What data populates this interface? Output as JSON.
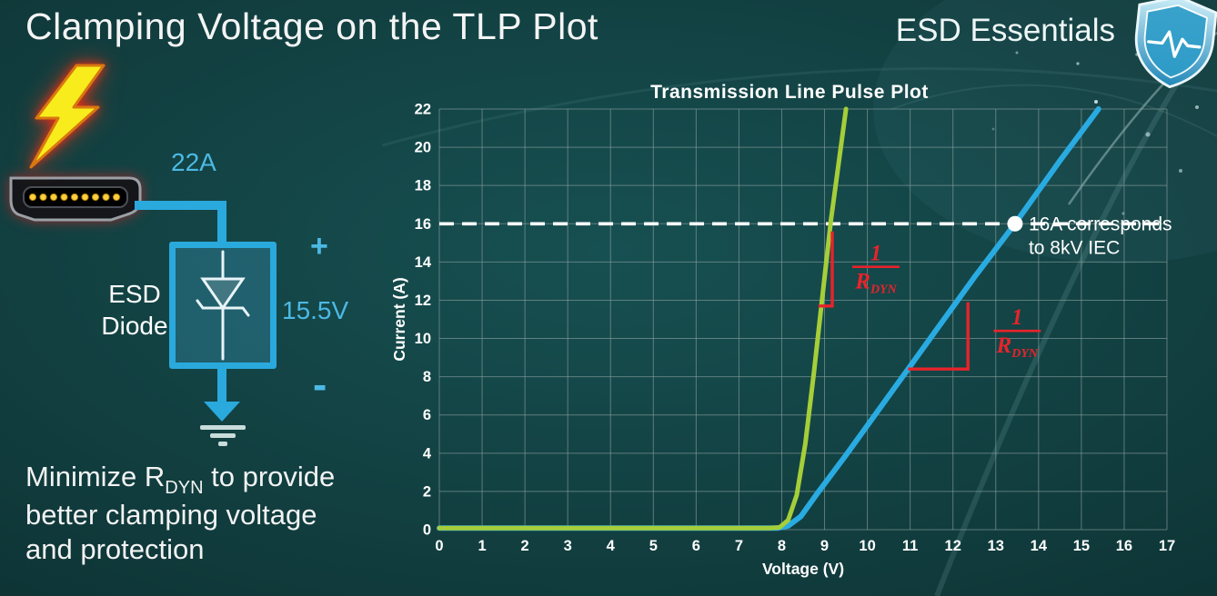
{
  "slide": {
    "title": "Clamping Voltage on the TLP Plot",
    "brand": "ESD Essentials"
  },
  "diagram": {
    "surge_current": "22A",
    "plus": "+",
    "clamp_voltage": "15.5V",
    "minus": "-",
    "component_line1": "ESD",
    "component_line2": "Diode"
  },
  "caption": {
    "line1_pre": "Minimize R",
    "line1_sub": "DYN",
    "line1_post": " to provide",
    "line2": "better clamping voltage",
    "line3": "and protection"
  },
  "chart_data": {
    "type": "line",
    "title": "Transmission Line Pulse Plot",
    "xlabel": "Voltage (V)",
    "ylabel": "Current (A)",
    "xlim": [
      0,
      17
    ],
    "ylim": [
      0,
      22
    ],
    "x_ticks": [
      0,
      1,
      2,
      3,
      4,
      5,
      6,
      7,
      8,
      9,
      10,
      11,
      12,
      13,
      14,
      15,
      16,
      17
    ],
    "y_ticks": [
      0,
      2,
      4,
      6,
      8,
      10,
      12,
      14,
      16,
      18,
      20,
      22
    ],
    "grid": true,
    "legend": "none",
    "colors": {
      "green": "#a6ce39",
      "blue": "#29abe2",
      "red": "#e8232b",
      "grid": "#8fa3a3",
      "white": "#ffffff"
    },
    "series": [
      {
        "name": "low-rdyn-esd-diode",
        "color": "green",
        "width": 5,
        "points": [
          [
            0,
            0.08
          ],
          [
            7.7,
            0.08
          ],
          [
            7.95,
            0.12
          ],
          [
            8.15,
            0.5
          ],
          [
            8.35,
            1.8
          ],
          [
            8.55,
            4.5
          ],
          [
            8.75,
            8.2
          ],
          [
            8.95,
            12.2
          ],
          [
            9.15,
            16.2
          ],
          [
            9.35,
            19.5
          ],
          [
            9.5,
            22
          ]
        ]
      },
      {
        "name": "high-rdyn-esd-diode",
        "color": "blue",
        "width": 6,
        "points": [
          [
            0,
            0.08
          ],
          [
            7.9,
            0.08
          ],
          [
            8.15,
            0.2
          ],
          [
            8.45,
            0.7
          ],
          [
            8.8,
            1.8
          ],
          [
            9.5,
            3.9
          ],
          [
            10.5,
            7.0
          ],
          [
            11.5,
            10.1
          ],
          [
            12.5,
            13.2
          ],
          [
            13.45,
            16.0
          ],
          [
            14.5,
            19.3
          ],
          [
            15.4,
            22
          ]
        ]
      }
    ],
    "reference_line": {
      "y": 16,
      "style": "dashed",
      "color": "#ffffff",
      "marker_x": 13.45,
      "label_line1": "16A corresponds",
      "label_line2": "to 8kV IEC"
    },
    "slope_marks": [
      {
        "series": "low-rdyn-esd-diode",
        "points": [
          [
            8.86,
            11.7
          ],
          [
            9.18,
            11.7
          ],
          [
            9.18,
            15.6
          ]
        ]
      },
      {
        "series": "high-rdyn-esd-diode",
        "points": [
          [
            10.95,
            8.4
          ],
          [
            12.35,
            8.4
          ],
          [
            12.35,
            11.9
          ]
        ]
      }
    ],
    "fraction_labels": [
      {
        "numerator": "1",
        "denominator": "R",
        "denominator_sub": "DYN",
        "x": 10.2,
        "y": 13.7
      },
      {
        "numerator": "1",
        "denominator": "R",
        "denominator_sub": "DYN",
        "x": 13.5,
        "y": 10.35
      }
    ]
  }
}
